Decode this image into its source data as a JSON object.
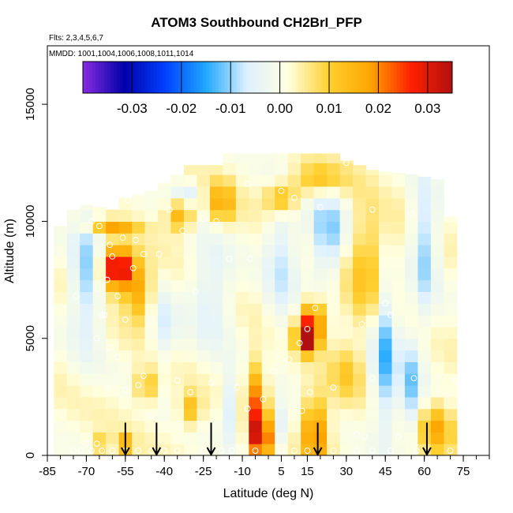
{
  "chart_data": {
    "type": "heatmap",
    "title": "ATOM3 Southbound CH2BrI_PFP",
    "flights_label": "Flts: 2,3,4,5,6,7",
    "dates_label": "MMDD: 1001,1004,1006,1008,1011,1014",
    "xlabel": "Latitude (deg N)",
    "ylabel": "Altitude (m)",
    "xlim": [
      -85,
      85
    ],
    "ylim": [
      0,
      17500
    ],
    "x_ticks": [
      -85,
      -70,
      -55,
      -40,
      -25,
      -10,
      5,
      15,
      30,
      45,
      60,
      75
    ],
    "x_minor_step": 5,
    "y_ticks": [
      0,
      5000,
      10000,
      15000
    ],
    "colorbar": {
      "min": -0.04,
      "max": 0.035,
      "ticks": [
        -0.03,
        -0.02,
        -0.01,
        0.0,
        0.01,
        0.02,
        0.03
      ],
      "tick_labels": [
        "-0.03",
        "-0.02",
        "-0.01",
        "0.00",
        "0.01",
        "0.02",
        "0.03"
      ],
      "colors": [
        "#8a2be2",
        "#0000a8",
        "#0040ff",
        "#20a8ff",
        "#dff1ff",
        "#ffffe0",
        "#ffd030",
        "#ffa500",
        "#ff2000",
        "#b01010"
      ]
    },
    "grid_x": [
      -80,
      -75,
      -70,
      -65,
      -60,
      -55,
      -50,
      -45,
      -40,
      -35,
      -30,
      -25,
      -20,
      -15,
      -10,
      -5,
      0,
      5,
      10,
      15,
      20,
      25,
      30,
      35,
      40,
      45,
      50,
      55,
      60,
      65,
      70
    ],
    "grid_y_step": 500,
    "hotspots": [
      {
        "lat": -58,
        "alt": 8000,
        "lat_w": 6,
        "alt_w": 900,
        "amp": 0.034
      },
      {
        "lat": -50,
        "alt": 7000,
        "lat_w": 5,
        "alt_w": 1200,
        "amp": 0.015
      },
      {
        "lat": -60,
        "alt": 9800,
        "lat_w": 10,
        "alt_w": 250,
        "amp": 0.015
      },
      {
        "lat": -34,
        "alt": 10300,
        "lat_w": 5,
        "alt_w": 700,
        "amp": 0.015
      },
      {
        "lat": -18,
        "alt": 10800,
        "lat_w": 5,
        "alt_w": 900,
        "amp": 0.015
      },
      {
        "lat": 5,
        "alt": 11000,
        "lat_w": 6,
        "alt_w": 700,
        "amp": 0.015
      },
      {
        "lat": 20,
        "alt": 11800,
        "lat_w": 10,
        "alt_w": 700,
        "amp": 0.012
      },
      {
        "lat": 15,
        "alt": 5000,
        "lat_w": 4,
        "alt_w": 600,
        "amp": 0.034
      },
      {
        "lat": 17,
        "alt": 5800,
        "lat_w": 5,
        "alt_w": 800,
        "amp": 0.022
      },
      {
        "lat": -3,
        "alt": 800,
        "lat_w": 4,
        "alt_w": 1000,
        "amp": 0.03
      },
      {
        "lat": -5,
        "alt": 2500,
        "lat_w": 4,
        "alt_w": 1500,
        "amp": 0.018
      },
      {
        "lat": 18,
        "alt": 1000,
        "lat_w": 5,
        "alt_w": 1500,
        "amp": 0.02
      },
      {
        "lat": 40,
        "alt": 8000,
        "lat_w": 10,
        "alt_w": 2500,
        "amp": 0.012
      },
      {
        "lat": 65,
        "alt": 1200,
        "lat_w": 6,
        "alt_w": 1000,
        "amp": 0.015
      },
      {
        "lat": -47,
        "alt": 3000,
        "lat_w": 4,
        "alt_w": 700,
        "amp": 0.012
      },
      {
        "lat": -30,
        "alt": 2000,
        "lat_w": 4,
        "alt_w": 700,
        "amp": 0.012
      },
      {
        "lat": -64,
        "alt": 500,
        "lat_w": 3,
        "alt_w": 400,
        "amp": 0.01
      },
      {
        "lat": -55,
        "alt": 500,
        "lat_w": 3,
        "alt_w": 400,
        "amp": 0.015
      },
      {
        "lat": 30,
        "alt": 3500,
        "lat_w": 6,
        "alt_w": 1200,
        "amp": 0.008
      },
      {
        "lat": -70,
        "alt": 7500,
        "lat_w": 6,
        "alt_w": 3000,
        "amp": -0.012
      },
      {
        "lat": -40,
        "alt": 5500,
        "lat_w": 5,
        "alt_w": 1500,
        "amp": -0.008
      },
      {
        "lat": -22,
        "alt": 7000,
        "lat_w": 8,
        "alt_w": 2500,
        "amp": -0.008
      },
      {
        "lat": 5,
        "alt": 8500,
        "lat_w": 6,
        "alt_w": 3000,
        "amp": -0.009
      },
      {
        "lat": 23,
        "alt": 9500,
        "lat_w": 7,
        "alt_w": 2000,
        "amp": -0.013
      },
      {
        "lat": 45,
        "alt": 5000,
        "lat_w": 5,
        "alt_w": 4000,
        "amp": -0.016
      },
      {
        "lat": 60,
        "alt": 9000,
        "lat_w": 5,
        "alt_w": 3000,
        "amp": -0.012
      },
      {
        "lat": 55,
        "alt": 3000,
        "lat_w": 4,
        "alt_w": 2000,
        "amp": -0.012
      },
      {
        "lat": -14,
        "alt": 2000,
        "lat_w": 4,
        "alt_w": 1500,
        "amp": -0.01
      },
      {
        "lat": 5,
        "alt": 1200,
        "lat_w": 4,
        "alt_w": 1000,
        "amp": -0.008
      },
      {
        "lat": -32,
        "alt": 11200,
        "lat_w": 5,
        "alt_w": 500,
        "amp": -0.01
      }
    ],
    "hotspot_baseline": 0.002,
    "envelope": [
      {
        "lat": -80,
        "top": 9800
      },
      {
        "lat": -75,
        "top": 10500
      },
      {
        "lat": -70,
        "top": 10700
      },
      {
        "lat": -60,
        "top": 10500
      },
      {
        "lat": -55,
        "top": 11000
      },
      {
        "lat": -45,
        "top": 11300
      },
      {
        "lat": -35,
        "top": 12000
      },
      {
        "lat": -30,
        "top": 12400
      },
      {
        "lat": -20,
        "top": 12400
      },
      {
        "lat": -15,
        "top": 12900
      },
      {
        "lat": 25,
        "top": 12900
      },
      {
        "lat": 30,
        "top": 12600
      },
      {
        "lat": 40,
        "top": 12200
      },
      {
        "lat": 55,
        "top": 12000
      },
      {
        "lat": 65,
        "top": 11800
      },
      {
        "lat": 70,
        "top": 10200
      },
      {
        "lat": 72,
        "top": 9500
      }
    ],
    "samples": [
      {
        "lat": -60,
        "alt": 8500
      },
      {
        "lat": -56,
        "alt": 9300
      },
      {
        "lat": -51,
        "alt": 9200
      },
      {
        "lat": -65,
        "alt": 9800
      },
      {
        "lat": -61,
        "alt": 9000
      },
      {
        "lat": -52,
        "alt": 8000
      },
      {
        "lat": -58,
        "alt": 6800
      },
      {
        "lat": -63,
        "alt": 6000
      },
      {
        "lat": -54,
        "alt": 10900
      },
      {
        "lat": -38,
        "alt": 10500
      },
      {
        "lat": -25,
        "alt": 10100
      },
      {
        "lat": -20,
        "alt": 10000
      },
      {
        "lat": -8,
        "alt": 11600
      },
      {
        "lat": 5,
        "alt": 11300
      },
      {
        "lat": 10,
        "alt": 11000
      },
      {
        "lat": 20,
        "alt": 10600
      },
      {
        "lat": 40,
        "alt": 10500
      },
      {
        "lat": 55,
        "alt": 10300
      },
      {
        "lat": 66,
        "alt": 11900
      },
      {
        "lat": 30,
        "alt": 12500
      },
      {
        "lat": -15,
        "alt": 8400
      },
      {
        "lat": -7,
        "alt": 8400
      },
      {
        "lat": -48,
        "alt": 8600
      },
      {
        "lat": -42,
        "alt": 8600
      },
      {
        "lat": -68,
        "alt": 10000
      },
      {
        "lat": -33,
        "alt": 9600
      },
      {
        "lat": -28,
        "alt": 7000
      },
      {
        "lat": 45,
        "alt": 6500
      },
      {
        "lat": -64,
        "alt": 6000
      },
      {
        "lat": -55,
        "alt": 5800
      },
      {
        "lat": -45,
        "alt": 5800
      },
      {
        "lat": -66,
        "alt": 5000
      },
      {
        "lat": -61,
        "alt": 4600
      },
      {
        "lat": -58,
        "alt": 4200
      },
      {
        "lat": 18,
        "alt": 6300
      },
      {
        "lat": 15,
        "alt": 5400
      },
      {
        "lat": 12,
        "alt": 4800
      },
      {
        "lat": 8,
        "alt": 4100
      },
      {
        "lat": 36,
        "alt": 5600
      },
      {
        "lat": 47,
        "alt": 6000
      },
      {
        "lat": -35,
        "alt": 3200
      },
      {
        "lat": -22,
        "alt": 3100
      },
      {
        "lat": -12,
        "alt": 2900
      },
      {
        "lat": 2,
        "alt": 3600
      },
      {
        "lat": -48,
        "alt": 3400
      },
      {
        "lat": 25,
        "alt": 2900
      },
      {
        "lat": 40,
        "alt": 3300
      },
      {
        "lat": 56,
        "alt": 3300
      },
      {
        "lat": 72,
        "alt": 3200
      },
      {
        "lat": -62,
        "alt": 2900
      },
      {
        "lat": -55,
        "alt": 2800
      },
      {
        "lat": -50,
        "alt": 3000
      },
      {
        "lat": -30,
        "alt": 2700
      },
      {
        "lat": -2,
        "alt": 2400
      },
      {
        "lat": 16,
        "alt": 2700
      },
      {
        "lat": -8,
        "alt": 2000
      },
      {
        "lat": 13,
        "alt": 1900
      },
      {
        "lat": -45,
        "alt": 1700
      },
      {
        "lat": 34,
        "alt": 900
      },
      {
        "lat": 37,
        "alt": 800
      },
      {
        "lat": 50,
        "alt": 800
      },
      {
        "lat": -75,
        "alt": 200
      },
      {
        "lat": -72,
        "alt": 200
      },
      {
        "lat": -68,
        "alt": 200
      },
      {
        "lat": -64,
        "alt": 200
      },
      {
        "lat": -60,
        "alt": 200
      },
      {
        "lat": -55,
        "alt": 200
      },
      {
        "lat": -50,
        "alt": 200
      },
      {
        "lat": -45,
        "alt": 200
      },
      {
        "lat": -40,
        "alt": 200
      },
      {
        "lat": -35,
        "alt": 200
      },
      {
        "lat": -25,
        "alt": 200
      },
      {
        "lat": -18,
        "alt": 200
      },
      {
        "lat": -14,
        "alt": 200
      },
      {
        "lat": -5,
        "alt": 200
      },
      {
        "lat": 5,
        "alt": 200
      },
      {
        "lat": 10,
        "alt": 200
      },
      {
        "lat": 15,
        "alt": 200
      },
      {
        "lat": 25,
        "alt": 200
      },
      {
        "lat": 34,
        "alt": 200
      },
      {
        "lat": 40,
        "alt": 200
      },
      {
        "lat": 47,
        "alt": 200
      },
      {
        "lat": 57,
        "alt": 200
      },
      {
        "lat": 70,
        "alt": 200
      },
      {
        "lat": -70,
        "alt": 500
      },
      {
        "lat": -66,
        "alt": 500
      },
      {
        "lat": -62,
        "alt": 7500
      },
      {
        "lat": -74,
        "alt": 6800
      }
    ],
    "arrows_lat": [
      -55,
      -43,
      -22,
      19,
      61
    ]
  }
}
